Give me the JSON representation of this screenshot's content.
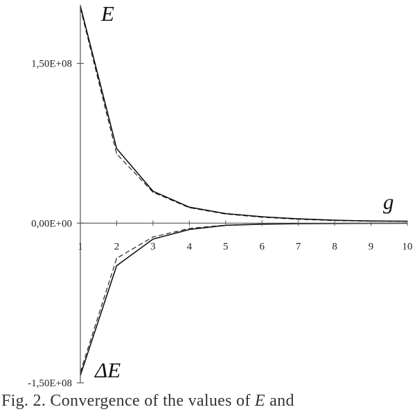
{
  "chart_data": {
    "type": "line",
    "x": [
      1,
      2,
      3,
      4,
      5,
      6,
      7,
      8,
      9,
      10
    ],
    "xlim": [
      1,
      10
    ],
    "ylim": [
      -150000000,
      205000000
    ],
    "x_tick_labels": [
      "1",
      "2",
      "3",
      "4",
      "5",
      "6",
      "7",
      "8",
      "9",
      "10"
    ],
    "y_tick_labels": [
      {
        "value": 150000000,
        "label": "1,50E+08"
      },
      {
        "value": 0,
        "label": "0,00E+00"
      },
      {
        "value": -150000000,
        "label": "-1,50E+08"
      }
    ],
    "series": [
      {
        "name": "E",
        "style": "solid",
        "values": [
          204000000,
          70000000,
          30000000,
          15000000,
          9000000,
          6000000,
          4000000,
          2700000,
          2000000,
          1800000
        ]
      },
      {
        "name": "E",
        "style": "dashed",
        "values": [
          202000000,
          65000000,
          29000000,
          14500000,
          8500000,
          5500000,
          3600000,
          2400000,
          1800000,
          1600000
        ]
      },
      {
        "name": "ΔE",
        "style": "solid",
        "values": [
          -143000000,
          -40000000,
          -15000000,
          -6000000,
          -2000000,
          -1000000,
          -500000,
          -300000,
          -200000,
          -100000
        ]
      },
      {
        "name": "ΔE",
        "style": "dashed",
        "values": [
          -140000000,
          -33000000,
          -13000000,
          -5000000,
          -1800000,
          -900000,
          -450000,
          -250000,
          -150000,
          -80000
        ]
      }
    ],
    "annotations": {
      "upper": "E",
      "lower": "ΔE",
      "x_var": "g"
    },
    "grid": false,
    "legend": "none"
  },
  "caption": {
    "lead": "Fig. 2. Convergence of the values of",
    "var": "E",
    "tail": "and"
  },
  "colors": {
    "axis": "#555555",
    "line": "#111111"
  }
}
